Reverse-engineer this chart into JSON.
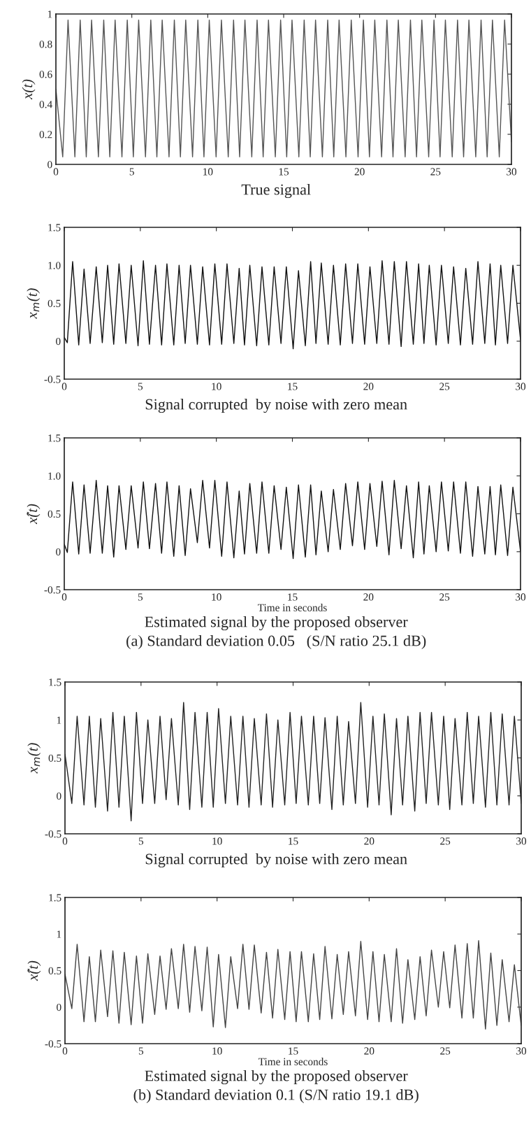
{
  "chart_data": [
    {
      "type": "line",
      "ylabel": "x(t)",
      "xlim": [
        0,
        30
      ],
      "ylim": [
        0,
        1
      ],
      "xticks": [
        0,
        5,
        10,
        15,
        20,
        25,
        30
      ],
      "yticks": [
        0,
        0.2,
        0.4,
        0.6,
        0.8,
        1
      ],
      "annotations": [
        "True signal"
      ],
      "series": [
        {
          "color": "#555555",
          "x": [
            0,
            0.45,
            0.8,
            1.25,
            1.6,
            2.0,
            2.35,
            2.8,
            3.15,
            3.55,
            3.9,
            4.35,
            4.7,
            5.1,
            5.45,
            5.9,
            6.25,
            6.65,
            7.0,
            7.45,
            7.8,
            8.2,
            8.55,
            9.0,
            9.35,
            9.75,
            10.1,
            10.55,
            10.9,
            11.35,
            11.7,
            12.1,
            12.45,
            12.9,
            13.25,
            13.65,
            14.0,
            14.45,
            14.8,
            15.2,
            15.55,
            16.0,
            16.35,
            16.75,
            17.1,
            17.55,
            17.9,
            18.3,
            18.65,
            19.1,
            19.45,
            19.9,
            20.25,
            20.65,
            21.0,
            21.45,
            21.8,
            22.2,
            22.55,
            23.0,
            23.35,
            23.75,
            24.1,
            24.55,
            24.9,
            25.3,
            25.65,
            26.1,
            26.45,
            26.85,
            27.2,
            27.65,
            28.0,
            28.4,
            28.75,
            29.2,
            29.55,
            30
          ],
          "values": [
            0.5,
            0.05,
            0.96,
            0.05,
            0.96,
            0.05,
            0.96,
            0.05,
            0.96,
            0.05,
            0.96,
            0.05,
            0.96,
            0.05,
            0.96,
            0.05,
            0.96,
            0.05,
            0.96,
            0.05,
            0.96,
            0.05,
            0.96,
            0.05,
            0.96,
            0.05,
            0.96,
            0.05,
            0.96,
            0.05,
            0.96,
            0.05,
            0.96,
            0.05,
            0.96,
            0.05,
            0.96,
            0.05,
            0.96,
            0.05,
            0.96,
            0.05,
            0.96,
            0.05,
            0.96,
            0.05,
            0.96,
            0.05,
            0.96,
            0.05,
            0.96,
            0.05,
            0.96,
            0.05,
            0.96,
            0.05,
            0.96,
            0.05,
            0.96,
            0.05,
            0.96,
            0.05,
            0.96,
            0.05,
            0.96,
            0.05,
            0.96,
            0.05,
            0.96,
            0.05,
            0.96,
            0.05,
            0.96,
            0.05,
            0.96,
            0.05,
            0.96,
            0.15
          ]
        }
      ]
    },
    {
      "type": "line",
      "ylabel": "x$_{m}$(t)",
      "xlim": [
        0,
        30
      ],
      "ylim": [
        -0.5,
        1.5
      ],
      "xticks": [
        0,
        5,
        10,
        15,
        20,
        25,
        30
      ],
      "yticks": [
        -0.5,
        0,
        0.5,
        {
          "value": 1,
          "label": "1.0"
        },
        1.5
      ],
      "annotations": [
        "Signal corrupted  by noise with zero mean"
      ],
      "series": [
        {
          "color": "#111111",
          "x": [
            0,
            0.2,
            0.55,
            0.95,
            1.3,
            1.7,
            2.1,
            2.5,
            2.85,
            3.25,
            3.6,
            4.05,
            4.4,
            4.85,
            5.2,
            5.6,
            6.0,
            6.4,
            6.75,
            7.2,
            7.55,
            7.95,
            8.3,
            8.75,
            9.1,
            9.55,
            9.9,
            10.35,
            10.7,
            11.15,
            11.5,
            11.85,
            12.2,
            12.65,
            13.0,
            13.45,
            13.8,
            14.25,
            14.6,
            15.05,
            15.4,
            15.85,
            16.2,
            16.55,
            16.9,
            17.35,
            17.7,
            18.15,
            18.5,
            18.95,
            19.3,
            19.75,
            20.1,
            20.55,
            20.9,
            21.35,
            21.7,
            22.15,
            22.5,
            22.95,
            23.3,
            23.65,
            24.0,
            24.45,
            24.8,
            25.25,
            25.6,
            26.05,
            26.4,
            26.85,
            27.2,
            27.65,
            28.0,
            28.35,
            28.7,
            29.15,
            29.5,
            30
          ],
          "values": [
            0.05,
            -0.02,
            1.05,
            -0.05,
            0.95,
            -0.03,
            0.98,
            -0.02,
            1.0,
            -0.04,
            1.02,
            -0.03,
            1.0,
            -0.06,
            1.06,
            -0.04,
            1.0,
            -0.05,
            1.02,
            -0.05,
            1.0,
            -0.03,
            1.0,
            -0.04,
            0.98,
            -0.05,
            1.02,
            -0.04,
            1.02,
            -0.03,
            0.96,
            -0.05,
            1.0,
            -0.06,
            0.98,
            -0.05,
            0.98,
            -0.03,
            0.98,
            -0.1,
            0.93,
            -0.06,
            1.05,
            -0.03,
            1.03,
            -0.04,
            1.0,
            -0.05,
            1.02,
            -0.03,
            1.02,
            -0.04,
            0.98,
            -0.03,
            1.06,
            -0.04,
            1.05,
            -0.07,
            1.05,
            -0.04,
            1.02,
            -0.03,
            1.0,
            -0.05,
            1.0,
            -0.03,
            0.98,
            -0.05,
            0.96,
            -0.04,
            1.05,
            -0.03,
            1.02,
            -0.05,
            1.0,
            -0.03,
            1.0,
            0.02
          ]
        }
      ]
    },
    {
      "type": "line",
      "ylabel": "x̂(t)",
      "xlabel": "Time in seconds",
      "xlim": [
        0,
        30
      ],
      "ylim": [
        -0.5,
        1.5
      ],
      "xticks": [
        0,
        5,
        10,
        15,
        20,
        25,
        30
      ],
      "yticks": [
        -0.5,
        0,
        0.5,
        {
          "value": 1,
          "label": "1.0"
        },
        1.5
      ],
      "annotations": [
        "Estimated signal by the proposed observer",
        "(a) Standard deviation 0.05   (S/N ratio 25.1 dB)"
      ],
      "series": [
        {
          "color": "#111111",
          "x": [
            0,
            0.2,
            0.55,
            0.95,
            1.3,
            1.7,
            2.1,
            2.5,
            2.85,
            3.25,
            3.6,
            4.05,
            4.4,
            4.85,
            5.2,
            5.6,
            6.0,
            6.4,
            6.75,
            7.2,
            7.55,
            7.95,
            8.3,
            8.75,
            9.1,
            9.55,
            9.9,
            10.35,
            10.7,
            11.15,
            11.5,
            11.85,
            12.2,
            12.65,
            13.0,
            13.45,
            13.8,
            14.25,
            14.6,
            15.05,
            15.4,
            15.85,
            16.2,
            16.55,
            16.9,
            17.35,
            17.7,
            18.15,
            18.5,
            18.95,
            19.3,
            19.75,
            20.1,
            20.55,
            20.9,
            21.35,
            21.7,
            22.15,
            22.5,
            22.95,
            23.3,
            23.65,
            24.0,
            24.45,
            24.8,
            25.25,
            25.6,
            26.05,
            26.4,
            26.85,
            27.2,
            27.65,
            28.0,
            28.35,
            28.7,
            29.15,
            29.5,
            30
          ],
          "values": [
            0.1,
            -0.01,
            0.92,
            -0.03,
            0.88,
            -0.02,
            0.94,
            -0.02,
            0.87,
            -0.07,
            0.87,
            0.03,
            0.87,
            0.05,
            0.92,
            0.04,
            0.9,
            -0.02,
            0.92,
            -0.06,
            0.87,
            -0.05,
            0.83,
            0.12,
            0.94,
            0.05,
            0.94,
            -0.06,
            0.92,
            -0.08,
            0.8,
            -0.03,
            0.9,
            -0.02,
            0.92,
            -0.02,
            0.87,
            0.03,
            0.85,
            -0.09,
            0.88,
            -0.07,
            0.88,
            -0.04,
            0.8,
            0.0,
            0.82,
            0.03,
            0.9,
            0.08,
            0.92,
            0.03,
            0.9,
            0.07,
            0.93,
            -0.04,
            0.94,
            0.04,
            0.87,
            -0.08,
            0.92,
            -0.03,
            0.87,
            0.0,
            0.92,
            0.01,
            0.92,
            -0.02,
            0.92,
            -0.06,
            0.86,
            -0.03,
            0.86,
            -0.04,
            0.88,
            -0.05,
            0.85,
            0.0
          ]
        }
      ]
    },
    {
      "type": "line",
      "ylabel": "x$_{m}$(t)",
      "xlim": [
        0,
        30
      ],
      "ylim": [
        -0.5,
        1.5
      ],
      "xticks": [
        0,
        5,
        10,
        15,
        20,
        25,
        30
      ],
      "yticks": [
        -0.5,
        0,
        0.5,
        1,
        1.5
      ],
      "annotations": [
        "Signal corrupted  by noise with zero mean"
      ],
      "series": [
        {
          "color": "#222222",
          "x": [
            0,
            0.45,
            0.8,
            1.25,
            1.6,
            2.0,
            2.35,
            2.8,
            3.15,
            3.55,
            3.9,
            4.35,
            4.7,
            5.1,
            5.45,
            5.9,
            6.25,
            6.65,
            7.0,
            7.45,
            7.8,
            8.2,
            8.55,
            9.0,
            9.35,
            9.75,
            10.1,
            10.55,
            10.9,
            11.35,
            11.7,
            12.1,
            12.45,
            12.9,
            13.25,
            13.65,
            14.0,
            14.45,
            14.8,
            15.2,
            15.55,
            16.0,
            16.35,
            16.75,
            17.1,
            17.55,
            17.9,
            18.3,
            18.65,
            19.1,
            19.45,
            19.9,
            20.25,
            20.65,
            21.0,
            21.45,
            21.8,
            22.2,
            22.55,
            23.0,
            23.35,
            23.75,
            24.1,
            24.55,
            24.9,
            25.3,
            25.65,
            26.1,
            26.45,
            26.85,
            27.2,
            27.65,
            28.0,
            28.4,
            28.75,
            29.2,
            29.55,
            30
          ],
          "values": [
            0.55,
            -0.1,
            1.05,
            -0.12,
            1.05,
            -0.15,
            1.02,
            -0.2,
            1.1,
            -0.15,
            1.05,
            -0.33,
            1.1,
            -0.1,
            1.0,
            -0.1,
            1.05,
            -0.05,
            1.02,
            -0.12,
            1.23,
            -0.18,
            1.1,
            -0.15,
            1.1,
            -0.15,
            1.15,
            -0.1,
            1.05,
            -0.12,
            1.05,
            -0.15,
            1.02,
            -0.12,
            1.08,
            -0.15,
            1.0,
            -0.12,
            1.1,
            -0.1,
            1.05,
            -0.12,
            1.05,
            -0.1,
            1.03,
            -0.18,
            1.05,
            -0.12,
            0.98,
            -0.1,
            1.23,
            -0.15,
            1.05,
            -0.12,
            1.08,
            -0.25,
            1.02,
            -0.12,
            1.05,
            -0.2,
            1.1,
            -0.1,
            1.1,
            -0.12,
            1.05,
            -0.18,
            1.02,
            -0.12,
            1.1,
            -0.1,
            1.05,
            -0.15,
            1.1,
            -0.12,
            1.08,
            -0.12,
            1.05,
            -0.1
          ]
        }
      ]
    },
    {
      "type": "line",
      "ylabel": "x̂(t)",
      "xlabel": "Time in seconds",
      "xlim": [
        0,
        30
      ],
      "ylim": [
        -0.5,
        1.5
      ],
      "xticks": [
        0,
        5,
        10,
        15,
        20,
        25,
        30
      ],
      "yticks": [
        -0.5,
        0,
        0.5,
        1,
        1.5
      ],
      "annotations": [
        "Estimated signal by the proposed observer",
        "(b) Standard deviation 0.1 (S/N ratio 19.1 dB)"
      ],
      "series": [
        {
          "color": "#444444",
          "x": [
            0,
            0.45,
            0.8,
            1.25,
            1.6,
            2.0,
            2.35,
            2.8,
            3.15,
            3.55,
            3.9,
            4.35,
            4.7,
            5.1,
            5.45,
            5.9,
            6.25,
            6.65,
            7.0,
            7.45,
            7.8,
            8.2,
            8.55,
            9.0,
            9.35,
            9.75,
            10.1,
            10.55,
            10.9,
            11.35,
            11.7,
            12.1,
            12.45,
            12.9,
            13.25,
            13.65,
            14.0,
            14.45,
            14.8,
            15.2,
            15.55,
            16.0,
            16.35,
            16.75,
            17.1,
            17.55,
            17.9,
            18.3,
            18.65,
            19.1,
            19.45,
            19.9,
            20.25,
            20.65,
            21.0,
            21.45,
            21.8,
            22.2,
            22.55,
            23.0,
            23.35,
            23.75,
            24.1,
            24.55,
            24.9,
            25.3,
            25.65,
            26.1,
            26.45,
            26.85,
            27.2,
            27.65,
            28.0,
            28.4,
            28.75,
            29.2,
            29.55,
            30
          ],
          "values": [
            0.45,
            -0.02,
            0.86,
            -0.2,
            0.69,
            -0.2,
            0.78,
            -0.13,
            0.77,
            -0.22,
            0.75,
            -0.24,
            0.7,
            -0.22,
            0.73,
            -0.1,
            0.7,
            -0.03,
            0.8,
            -0.02,
            0.86,
            -0.07,
            0.83,
            -0.05,
            0.82,
            -0.27,
            0.72,
            -0.28,
            0.69,
            -0.02,
            0.86,
            -0.03,
            0.85,
            -0.08,
            0.75,
            -0.15,
            0.79,
            -0.17,
            0.76,
            -0.2,
            0.76,
            -0.2,
            0.73,
            -0.17,
            0.83,
            -0.16,
            0.72,
            -0.1,
            0.76,
            -0.12,
            0.9,
            -0.17,
            0.76,
            -0.2,
            0.72,
            -0.2,
            0.8,
            -0.22,
            0.65,
            -0.17,
            0.69,
            -0.12,
            0.78,
            0.0,
            0.76,
            -0.01,
            0.85,
            -0.15,
            0.87,
            -0.15,
            0.91,
            -0.3,
            0.74,
            -0.25,
            0.65,
            -0.2,
            0.58,
            -0.25
          ]
        }
      ]
    }
  ]
}
